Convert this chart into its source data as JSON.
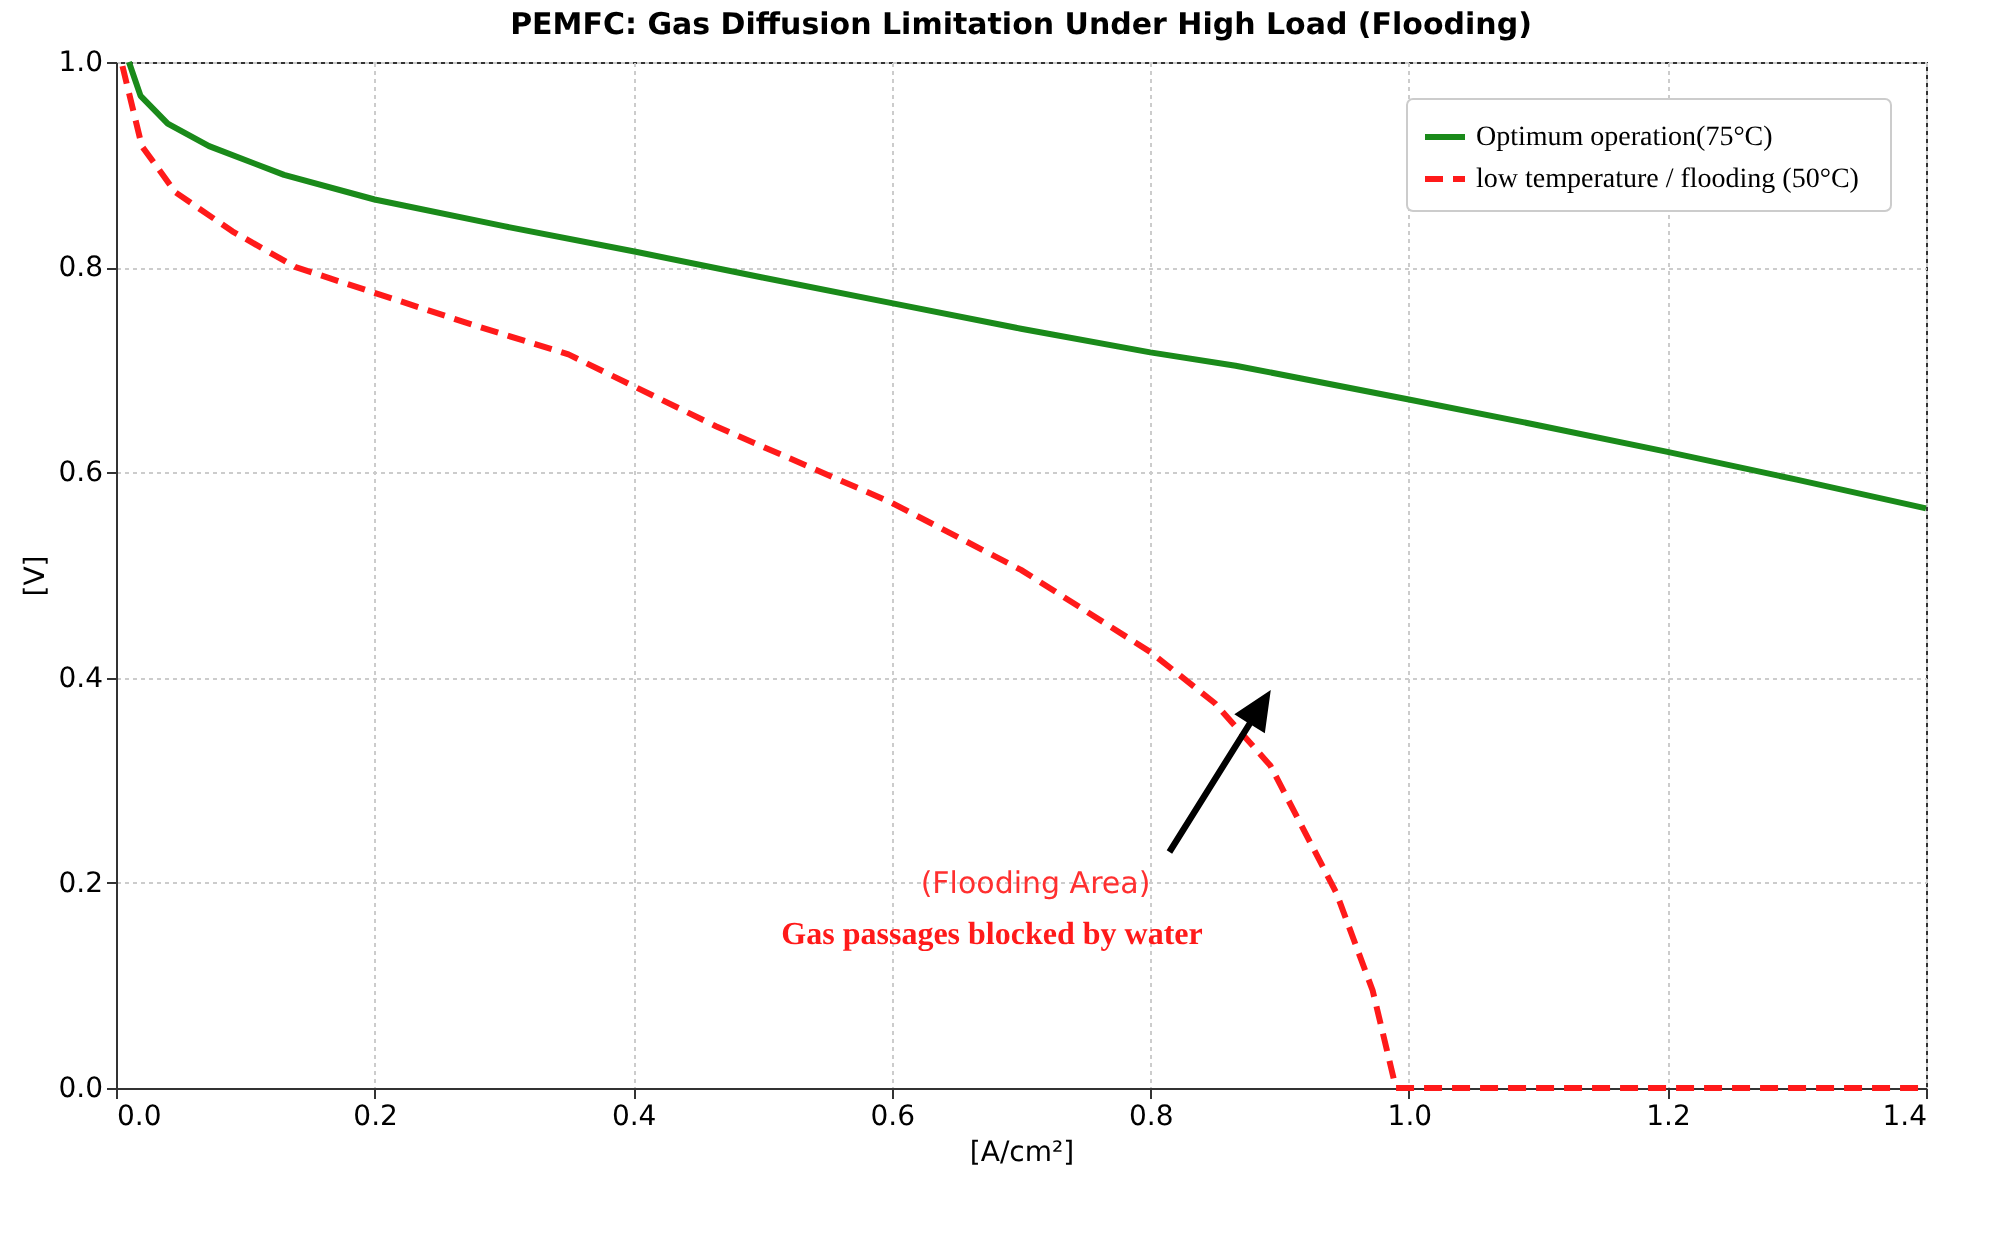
{
  "chart_data": {
    "type": "line",
    "title": "PEMFC: Gas Diffusion Limitation Under High Load (Flooding)",
    "xlabel": "[A/cm²]",
    "ylabel": "[V]",
    "xlim": [
      0,
      1.4
    ],
    "ylim": [
      0,
      1.0
    ],
    "xticks": [
      {
        "value": 0,
        "label": "0.0"
      },
      0.2,
      0.4,
      0.6,
      0.8,
      {
        "value": 1,
        "label": "1.0"
      },
      1.2,
      1.4
    ],
    "yticks": [
      {
        "value": 0,
        "label": "0.0"
      },
      0.2,
      0.4,
      0.6,
      0.8,
      {
        "value": 1,
        "label": "1.0"
      }
    ],
    "grid": true,
    "legend": "top right",
    "marker": "none",
    "series": [
      {
        "name": "Optimum operation(75°C)",
        "color": "#1a8a1a",
        "line_style": "solid",
        "x": [
          0.01,
          0.019,
          0.04,
          0.072,
          0.13,
          0.2,
          0.3,
          0.402,
          0.5,
          0.6,
          0.7,
          0.8,
          0.866,
          1.0,
          1.1,
          1.2,
          1.3,
          1.4
        ],
        "values": [
          1.0,
          0.967,
          0.94,
          0.918,
          0.89,
          0.866,
          0.84,
          0.815,
          0.79,
          0.765,
          0.74,
          0.717,
          0.704,
          0.671,
          0.646,
          0.62,
          0.593,
          0.565
        ]
      },
      {
        "name": "low temperature / flooding   (50°C)",
        "color": "#ff1a1a",
        "line_style": "dashed",
        "x": [
          0.005,
          0.02,
          0.046,
          0.09,
          0.139,
          0.2,
          0.278,
          0.35,
          0.464,
          0.599,
          0.7,
          0.8,
          0.85,
          0.893,
          0.944,
          0.972,
          0.99,
          1.1,
          1.2,
          1.3,
          1.4
        ],
        "values": [
          0.996,
          0.918,
          0.873,
          0.835,
          0.8,
          0.775,
          0.743,
          0.715,
          0.645,
          0.571,
          0.505,
          0.425,
          0.375,
          0.314,
          0.19,
          0.095,
          0.0,
          0.0,
          0.0,
          0.0,
          0.0
        ]
      }
    ],
    "annotations": [
      "(Flooding Area)",
      "Gas passages blocked by water"
    ]
  }
}
